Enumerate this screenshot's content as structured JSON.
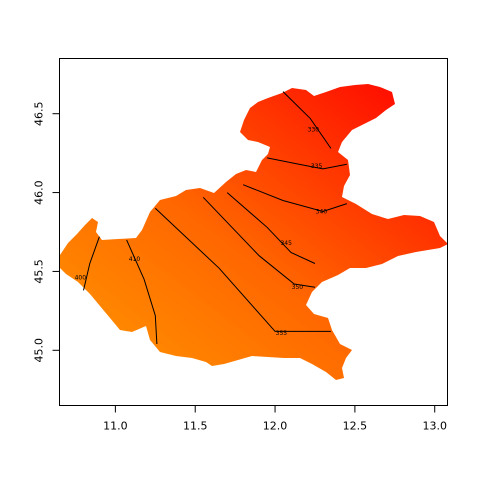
{
  "chart_data": {
    "type": "heatmap",
    "title": "",
    "xlabel": "",
    "ylabel": "",
    "xlim": [
      10.65,
      13.08
    ],
    "ylim": [
      44.65,
      46.85
    ],
    "x_ticks": [
      {
        "value": 11.0,
        "label": "11.0"
      },
      {
        "value": 11.5,
        "label": "11.5"
      },
      {
        "value": 12.0,
        "label": "12.0"
      },
      {
        "value": 12.5,
        "label": "12.5"
      },
      {
        "value": 13.0,
        "label": "13.0"
      }
    ],
    "y_ticks": [
      {
        "value": 45.0,
        "label": "45.0"
      },
      {
        "value": 45.5,
        "label": "45.5"
      },
      {
        "value": 46.0,
        "label": "46.0"
      },
      {
        "value": 46.5,
        "label": "46.5"
      }
    ],
    "color_scale": {
      "low_color": "#ff9900",
      "high_color": "#ff0000"
    },
    "contours": [
      {
        "label": "400",
        "points": [
          [
            10.9,
            45.72
          ],
          [
            10.84,
            45.55
          ],
          [
            10.8,
            45.38
          ]
        ],
        "label_at": [
          10.78,
          45.46
        ]
      },
      {
        "label": "410",
        "points": [
          [
            11.07,
            45.7
          ],
          [
            11.18,
            45.45
          ],
          [
            11.25,
            45.22
          ],
          [
            11.26,
            45.04
          ]
        ],
        "label_at": [
          11.12,
          45.58
        ]
      },
      {
        "label": "355",
        "points": [
          [
            11.25,
            45.9
          ],
          [
            11.65,
            45.52
          ],
          [
            12.0,
            45.12
          ],
          [
            12.35,
            45.12
          ]
        ],
        "label_at": [
          12.04,
          45.11
        ]
      },
      {
        "label": "350",
        "points": [
          [
            11.55,
            45.97
          ],
          [
            11.9,
            45.6
          ],
          [
            12.12,
            45.42
          ],
          [
            12.25,
            45.4
          ]
        ],
        "label_at": [
          12.14,
          45.4
        ]
      },
      {
        "label": "345",
        "points": [
          [
            11.7,
            46.0
          ],
          [
            11.95,
            45.78
          ],
          [
            12.1,
            45.62
          ],
          [
            12.25,
            45.55
          ]
        ],
        "label_at": [
          12.07,
          45.68
        ]
      },
      {
        "label": "340",
        "points": [
          [
            11.8,
            46.05
          ],
          [
            12.05,
            45.95
          ],
          [
            12.3,
            45.88
          ],
          [
            12.45,
            45.93
          ]
        ],
        "label_at": [
          12.29,
          45.88
        ]
      },
      {
        "label": "335",
        "points": [
          [
            11.95,
            46.22
          ],
          [
            12.15,
            46.18
          ],
          [
            12.3,
            46.15
          ],
          [
            12.45,
            46.18
          ]
        ],
        "label_at": [
          12.26,
          46.17
        ]
      },
      {
        "label": "330",
        "points": [
          [
            12.05,
            46.64
          ],
          [
            12.22,
            46.47
          ],
          [
            12.35,
            46.28
          ]
        ],
        "label_at": [
          12.24,
          46.4
        ]
      }
    ]
  }
}
